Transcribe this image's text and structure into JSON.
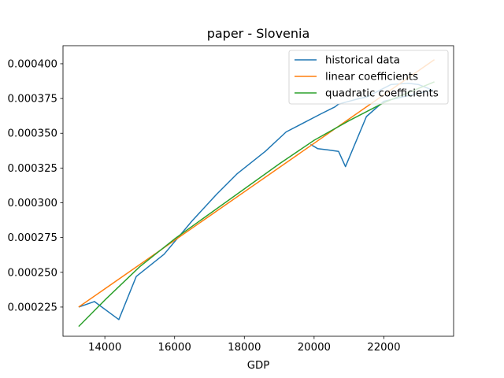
{
  "chart_data": {
    "type": "line",
    "title": "paper - Slovenia",
    "xlabel": "GDP",
    "ylabel": "",
    "xlim": [
      12800,
      24000
    ],
    "ylim": [
      0.000204,
      0.000413
    ],
    "x_ticks": [
      14000,
      16000,
      18000,
      20000,
      22000
    ],
    "x_tick_labels": [
      "14000",
      "16000",
      "18000",
      "20000",
      "22000"
    ],
    "y_ticks": [
      0.000225,
      0.00025,
      0.000275,
      0.0003,
      0.000325,
      0.00035,
      0.000375,
      0.0004
    ],
    "y_tick_labels": [
      "0.000225",
      "0.000250",
      "0.000275",
      "0.000300",
      "0.000325",
      "0.000350",
      "0.000375",
      "0.000400"
    ],
    "grid": false,
    "legend_position": "top-right",
    "series": [
      {
        "name": "historical data",
        "color": "#1f77b4",
        "x": [
          13250,
          13700,
          14400,
          14900,
          15700,
          16500,
          17200,
          17800,
          18600,
          19200,
          20200,
          20600,
          20700,
          21300,
          21500,
          22200,
          22700,
          23000,
          23400,
          23200,
          22000,
          21500,
          20900,
          20700,
          20400,
          20100,
          19900
        ],
        "y": [
          0.000225,
          0.000229,
          0.000216,
          0.000247,
          0.000263,
          0.000287,
          0.000306,
          0.000321,
          0.000337,
          0.000351,
          0.000364,
          0.000369,
          0.000371,
          0.000375,
          0.000376,
          0.000385,
          0.000386,
          0.000385,
          0.000381,
          0.00038,
          0.000373,
          0.000362,
          0.000326,
          0.000337,
          0.000338,
          0.000339,
          0.000342
        ]
      },
      {
        "name": "linear coefficients",
        "color": "#ff7f0e",
        "x": [
          13250,
          23450
        ],
        "y": [
          0.000225,
          0.000403
        ]
      },
      {
        "name": "quadratic coefficients",
        "color": "#2ca02c",
        "x": [
          13250,
          14000,
          15000,
          16000,
          17000,
          18000,
          19000,
          20000,
          21000,
          22000,
          23450
        ],
        "y": [
          0.000211,
          0.00023,
          0.000254,
          0.000274,
          0.000292,
          0.00031,
          0.000328,
          0.000345,
          0.000359,
          0.000372,
          0.000387
        ]
      }
    ]
  }
}
